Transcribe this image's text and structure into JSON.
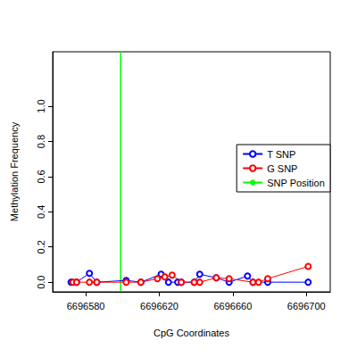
{
  "chart_data": {
    "type": "scatter",
    "x_label": "CpG Coordinates",
    "y_label": "Methylation Frequency",
    "xlim": [
      6696562,
      6696713
    ],
    "xticks": [
      6696580,
      6696620,
      6696660,
      6696700
    ],
    "ylim": [
      -0.055,
      1.31
    ],
    "yticks": [
      {
        "value": 0,
        "label": "0.0"
      },
      0.2,
      0.4,
      0.6,
      0.8,
      {
        "value": 1,
        "label": "1.0"
      }
    ],
    "legend": "right",
    "grid": false,
    "series": [
      {
        "name": "T SNP",
        "color": "#0000ff",
        "marker": "emptyCircle",
        "line_style": "solid",
        "x": [
          6696572,
          6696575,
          6696582,
          6696586,
          6696602,
          6696610,
          6696621,
          6696625,
          6696630,
          6696632,
          6696639,
          6696642,
          6696651,
          6696658,
          6696668,
          6696671,
          6696679,
          6696701
        ],
        "values": [
          0,
          0,
          0.05,
          0,
          0.01,
          0,
          0.045,
          0,
          0,
          0,
          0,
          0.045,
          0.025,
          0,
          0.035,
          0,
          0,
          0
        ]
      },
      {
        "name": "G SNP",
        "color": "#ff0000",
        "marker": "emptyCircle",
        "line_style": "solid",
        "x": [
          6696573,
          6696575,
          6696582,
          6696586,
          6696602,
          6696610,
          6696619,
          6696623,
          6696627,
          6696632,
          6696639,
          6696642,
          6696651,
          6696658,
          6696671,
          6696674,
          6696679,
          6696701
        ],
        "values": [
          0,
          0,
          0,
          0,
          0,
          0,
          0.02,
          0.03,
          0.04,
          0,
          0,
          0,
          0.025,
          0.02,
          0,
          0,
          0.02,
          0.09
        ]
      }
    ],
    "snp_position": {
      "name": "SNP Position",
      "color": "#00ff00",
      "x": 6696599
    }
  }
}
